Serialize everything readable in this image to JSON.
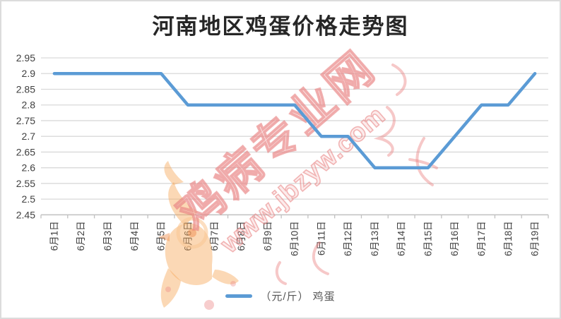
{
  "title": "河南地区鸡蛋价格走势图",
  "legend": {
    "label": "（元/斤） 鸡蛋",
    "swatch_color": "#5B9BD5"
  },
  "watermark": {
    "main_text": "鸡病专业网",
    "url_text": "www.jbzyw.com",
    "color": "#E57373",
    "logo": "rooster-logo"
  },
  "chart_data": {
    "type": "line",
    "title": "河南地区鸡蛋价格走势图",
    "categories": [
      "6月1日",
      "6月2日",
      "6月3日",
      "6月4日",
      "6月5日",
      "6月6日",
      "6月7日",
      "6月8日",
      "6月9日",
      "6月10日",
      "6月11日",
      "6月12日",
      "6月13日",
      "6月14日",
      "6月15日",
      "6月16日",
      "6月17日",
      "6月18日",
      "6月19日"
    ],
    "series": [
      {
        "name": "（元/斤） 鸡蛋",
        "values": [
          2.9,
          2.9,
          2.9,
          2.9,
          2.9,
          2.8,
          2.8,
          2.8,
          2.8,
          2.8,
          2.7,
          2.7,
          2.6,
          2.6,
          2.6,
          2.7,
          2.8,
          2.8,
          2.9
        ]
      }
    ],
    "xlabel": "",
    "ylabel": "",
    "ylim": [
      2.45,
      2.95
    ],
    "ytick_step": 0.05,
    "ytick_labels": [
      "2.95",
      "2.9",
      "2.85",
      "2.8",
      "2.75",
      "2.7",
      "2.65",
      "2.6",
      "2.55",
      "2.5",
      "2.45"
    ],
    "grid": true,
    "legend_position": "bottom",
    "line_color": "#5B9BD5",
    "grid_color": "#D9D9D9",
    "axis_color": "#C0C0C0",
    "tick_label_color": "#404040"
  }
}
